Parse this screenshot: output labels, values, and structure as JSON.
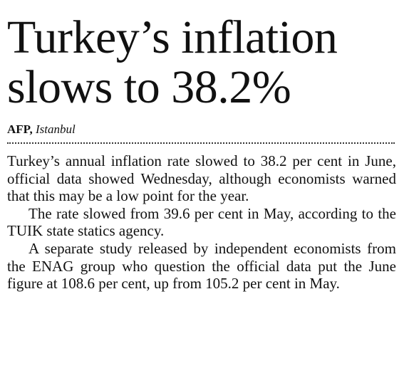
{
  "article": {
    "headline_line1": "Turkey’s inflation",
    "headline_line2": "slows to 38.2%",
    "byline_agency": "AFP,",
    "byline_location": "Istanbul",
    "paragraphs": [
      "Turkey’s annual inflation rate slowed to 38.2 per cent in June, official data showed Wednesday, although economists warned that this may be a low point for the year.",
      "The rate slowed from 39.6 per cent in May, according to the TUIK state statics agency.",
      "A separate study released by independent economists from the ENAG group who question the official data put the June figure at 108.6 per cent, up from 105.2 per cent in May."
    ]
  }
}
